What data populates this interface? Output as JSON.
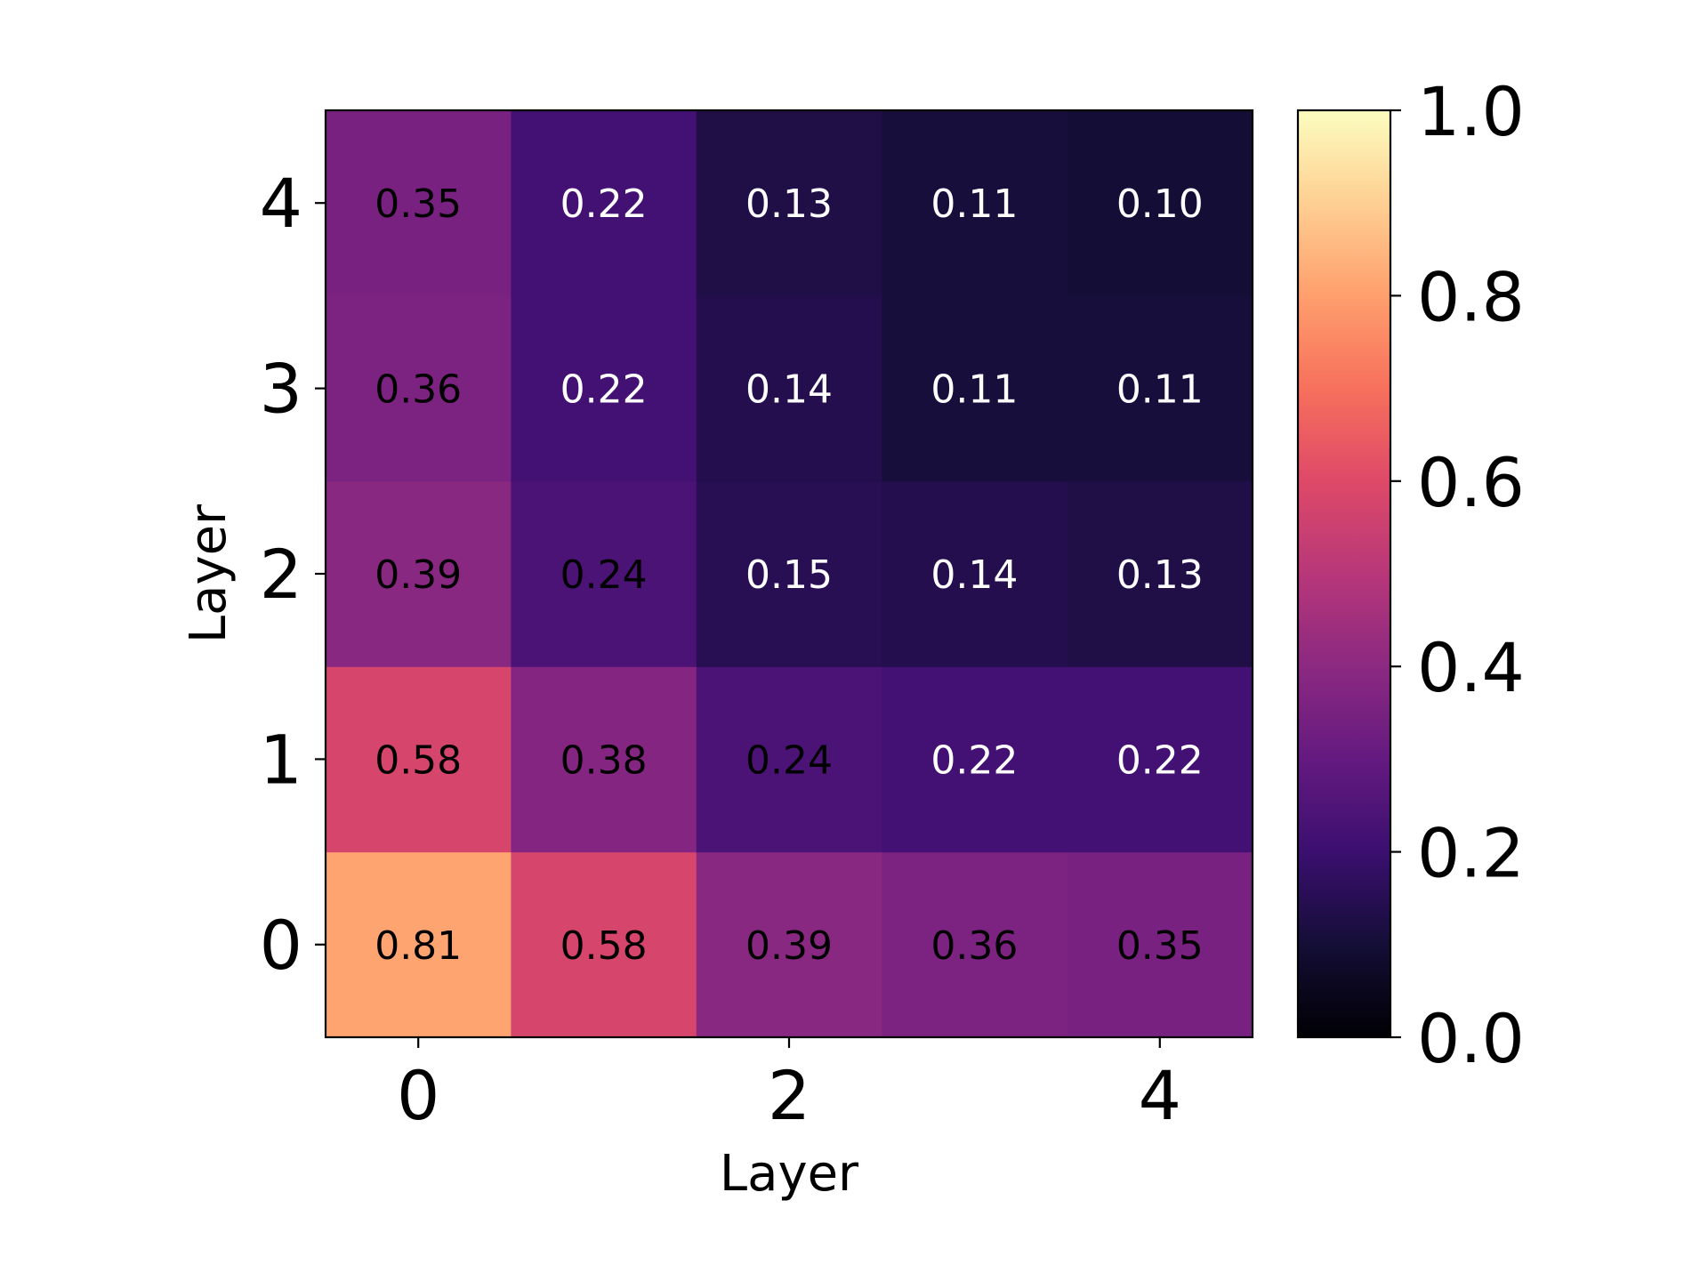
{
  "chart_data": {
    "type": "heatmap",
    "title": "",
    "xlabel": "Layer",
    "ylabel": "Layer",
    "x_categories": [
      0,
      1,
      2,
      3,
      4
    ],
    "y_categories": [
      0,
      1,
      2,
      3,
      4
    ],
    "x_tick_labels": [
      "0",
      "2",
      "4"
    ],
    "y_tick_labels": [
      "0",
      "1",
      "2",
      "3",
      "4"
    ],
    "y_order": "bottom-to-top",
    "values": [
      [
        0.81,
        0.58,
        0.39,
        0.36,
        0.35
      ],
      [
        0.58,
        0.38,
        0.24,
        0.22,
        0.22
      ],
      [
        0.39,
        0.24,
        0.15,
        0.14,
        0.13
      ],
      [
        0.36,
        0.22,
        0.14,
        0.11,
        0.11
      ],
      [
        0.35,
        0.22,
        0.13,
        0.11,
        0.1
      ]
    ],
    "cell_label_format": "0.00",
    "colormap": "magma",
    "colorbar": {
      "range": [
        0.0,
        1.0
      ],
      "tick_labels": [
        "0.0",
        "0.2",
        "0.4",
        "0.6",
        "0.8",
        "1.0"
      ],
      "placement": "right"
    },
    "grid": false
  }
}
